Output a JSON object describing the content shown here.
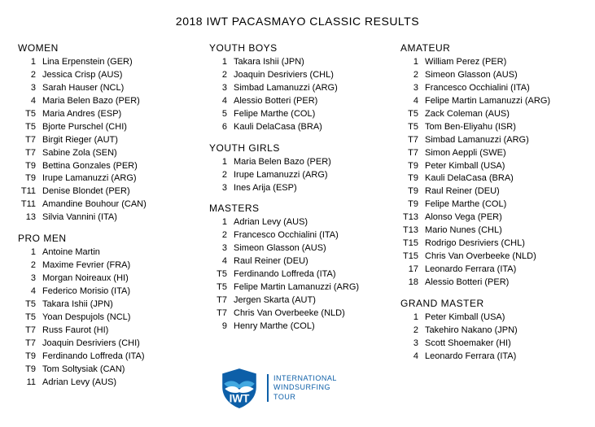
{
  "title": "2018 IWT PACASMAYO CLASSIC RESULTS",
  "logo": {
    "brandColor": "#0d5fa8",
    "accentColor": "#48b0e6",
    "waveColor": "#ffffff",
    "monogram": "IWT",
    "line1": "INTERNATIONAL",
    "line2": "WINDSURFING",
    "line3": "TOUR"
  },
  "columns": [
    [
      {
        "heading": "WOMEN",
        "rows": [
          {
            "pos": "1",
            "name": "Lina Erpenstein (GER)"
          },
          {
            "pos": "2",
            "name": "Jessica Crisp (AUS)"
          },
          {
            "pos": "3",
            "name": "Sarah Hauser (NCL)"
          },
          {
            "pos": "4",
            "name": "Maria Belen Bazo (PER)"
          },
          {
            "pos": "T5",
            "name": "Maria Andres (ESP)"
          },
          {
            "pos": "T5",
            "name": "Bjorte Purschel (CHI)"
          },
          {
            "pos": "T7",
            "name": "Birgit Rieger (AUT)"
          },
          {
            "pos": "T7",
            "name": "Sabine Zola (SEN)"
          },
          {
            "pos": "T9",
            "name": "Bettina Gonzales (PER)"
          },
          {
            "pos": "T9",
            "name": "Irupe Lamanuzzi (ARG)"
          },
          {
            "pos": "T11",
            "name": "Denise Blondet (PER)"
          },
          {
            "pos": "T11",
            "name": "Amandine Bouhour (CAN)"
          },
          {
            "pos": "13",
            "name": "Silvia Vannini (ITA)"
          }
        ]
      },
      {
        "heading": "PRO MEN",
        "rows": [
          {
            "pos": "1",
            "name": "Antoine Martin"
          },
          {
            "pos": "2",
            "name": "Maxime Fevrier (FRA)"
          },
          {
            "pos": "3",
            "name": "Morgan Noireaux (HI)"
          },
          {
            "pos": "4",
            "name": "Federico Morisio (ITA)"
          },
          {
            "pos": "T5",
            "name": "Takara Ishii (JPN)"
          },
          {
            "pos": "T5",
            "name": "Yoan Despujols (NCL)"
          },
          {
            "pos": "T7",
            "name": "Russ Faurot (HI)"
          },
          {
            "pos": "T7",
            "name": "Joaquin Desriviers (CHI)"
          },
          {
            "pos": "T9",
            "name": "Ferdinando Loffreda (ITA)"
          },
          {
            "pos": "T9",
            "name": "Tom Soltysiak (CAN)"
          },
          {
            "pos": "11",
            "name": "Adrian Levy (AUS)"
          }
        ]
      }
    ],
    [
      {
        "heading": "YOUTH BOYS",
        "rows": [
          {
            "pos": "1",
            "name": "Takara Ishii (JPN)"
          },
          {
            "pos": "2",
            "name": "Joaquin Desriviers (CHL)"
          },
          {
            "pos": "3",
            "name": "Simbad Lamanuzzi (ARG)"
          },
          {
            "pos": "4",
            "name": "Alessio Botteri (PER)"
          },
          {
            "pos": "5",
            "name": "Felipe Marthe (COL)"
          },
          {
            "pos": "6",
            "name": "Kauli DelaCasa (BRA)"
          }
        ]
      },
      {
        "heading": "YOUTH GIRLS",
        "rows": [
          {
            "pos": "1",
            "name": "Maria Belen Bazo (PER)"
          },
          {
            "pos": "2",
            "name": "Irupe Lamanuzzi (ARG)"
          },
          {
            "pos": "3",
            "name": "Ines Arija (ESP)"
          }
        ]
      },
      {
        "heading": "MASTERS",
        "rows": [
          {
            "pos": "1",
            "name": "Adrian Levy (AUS)"
          },
          {
            "pos": "2",
            "name": "Francesco Occhialini (ITA)"
          },
          {
            "pos": "3",
            "name": "Simeon Glasson (AUS)"
          },
          {
            "pos": "4",
            "name": "Raul Reiner (DEU)"
          },
          {
            "pos": "T5",
            "name": "Ferdinando Loffreda (ITA)"
          },
          {
            "pos": "T5",
            "name": "Felipe Martin Lamanuzzi (ARG)"
          },
          {
            "pos": "T7",
            "name": "Jergen Skarta (AUT)"
          },
          {
            "pos": "T7",
            "name": "Chris Van Overbeeke (NLD)"
          },
          {
            "pos": "9",
            "name": "Henry Marthe (COL)"
          }
        ]
      }
    ],
    [
      {
        "heading": "AMATEUR",
        "rows": [
          {
            "pos": "1",
            "name": "William Perez (PER)"
          },
          {
            "pos": "2",
            "name": "Simeon Glasson (AUS)"
          },
          {
            "pos": "3",
            "name": "Francesco Occhialini (ITA)"
          },
          {
            "pos": "4",
            "name": "Felipe Martin Lamanuzzi (ARG)"
          },
          {
            "pos": "T5",
            "name": "Zack Coleman (AUS)"
          },
          {
            "pos": "T5",
            "name": "Tom Ben-Eliyahu (ISR)"
          },
          {
            "pos": "T7",
            "name": "Simbad Lamanuzzi (ARG)"
          },
          {
            "pos": "T7",
            "name": "Simon Aeppli (SWE)"
          },
          {
            "pos": "T9",
            "name": "Peter Kimball (USA)"
          },
          {
            "pos": "T9",
            "name": "Kauli DelaCasa (BRA)"
          },
          {
            "pos": "T9",
            "name": "Raul Reiner (DEU)"
          },
          {
            "pos": "T9",
            "name": "Felipe Marthe (COL)"
          },
          {
            "pos": "T13",
            "name": "Alonso Vega (PER)"
          },
          {
            "pos": "T13",
            "name": "Mario Nunes (CHL)"
          },
          {
            "pos": "T15",
            "name": "Rodrigo Desriviers (CHL)"
          },
          {
            "pos": "T15",
            "name": "Chris Van Overbeeke (NLD)"
          },
          {
            "pos": "17",
            "name": "Leonardo Ferrara (ITA)"
          },
          {
            "pos": "18",
            "name": "Alessio Botteri (PER)"
          }
        ]
      },
      {
        "heading": "GRAND MASTER",
        "rows": [
          {
            "pos": "1",
            "name": "Peter Kimball (USA)"
          },
          {
            "pos": "2",
            "name": "Takehiro Nakano (JPN)"
          },
          {
            "pos": "3",
            "name": "Scott Shoemaker (HI)"
          },
          {
            "pos": "4",
            "name": "Leonardo Ferrara (ITA)"
          }
        ]
      }
    ]
  ]
}
